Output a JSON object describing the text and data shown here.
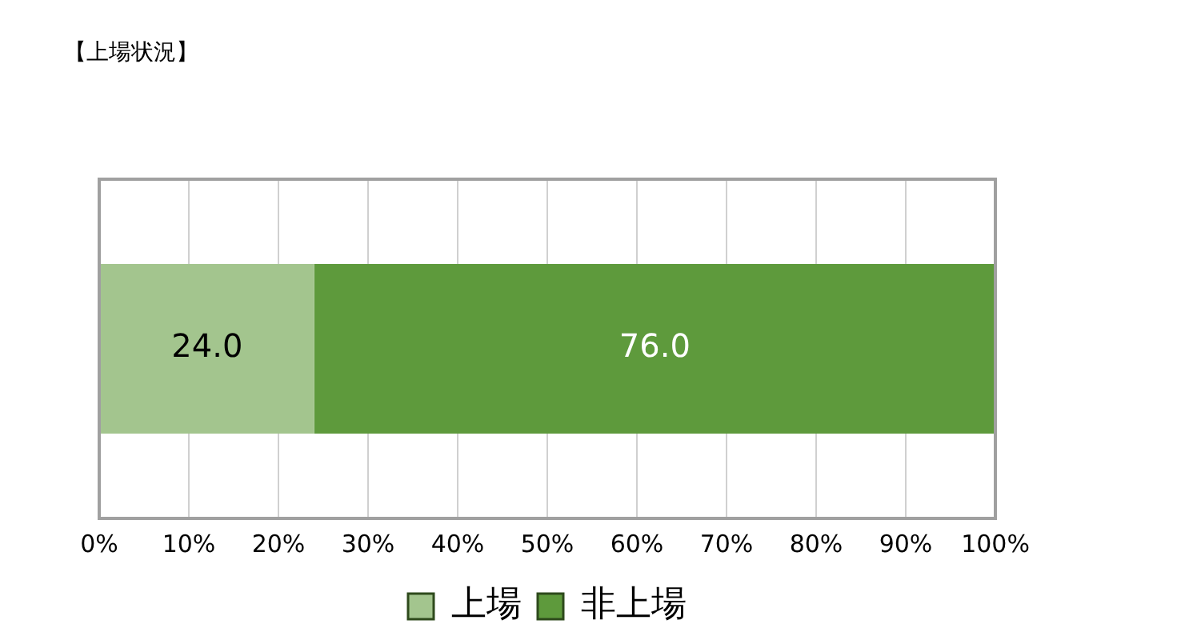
{
  "chart_data": {
    "type": "bar",
    "title": "【上場状況】",
    "orientation": "horizontal",
    "stacked": true,
    "categories": [
      null
    ],
    "series": [
      {
        "name": "上場",
        "color": "#a3c58e",
        "values": [
          24.0
        ],
        "value_labels": [
          "24.0"
        ]
      },
      {
        "name": "非上場",
        "color": "#5e9a3c",
        "values": [
          76.0
        ],
        "value_labels": [
          "76.0"
        ]
      }
    ],
    "xlim": [
      0,
      100
    ],
    "xticks": [
      {
        "value": 0,
        "label": "0%"
      },
      {
        "value": 10,
        "label": "10%"
      },
      {
        "value": 20,
        "label": "20%"
      },
      {
        "value": 30,
        "label": "30%"
      },
      {
        "value": 40,
        "label": "40%"
      },
      {
        "value": 50,
        "label": "50%"
      },
      {
        "value": 60,
        "label": "60%"
      },
      {
        "value": 70,
        "label": "70%"
      },
      {
        "value": 80,
        "label": "80%"
      },
      {
        "value": 90,
        "label": "90%"
      },
      {
        "value": 100,
        "label": "100%"
      }
    ],
    "grid": "x",
    "legend": "bottom"
  }
}
